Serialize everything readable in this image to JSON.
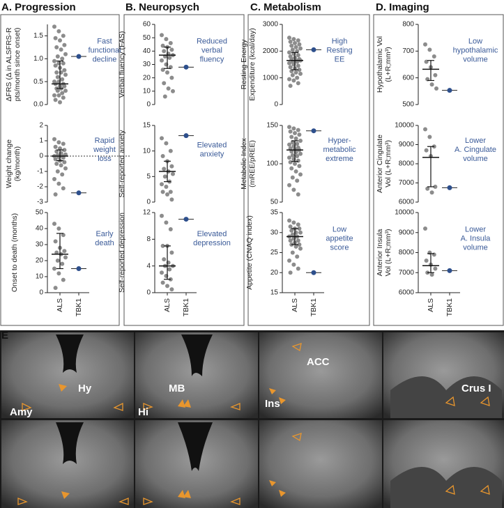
{
  "panels": [
    "A. Progression",
    "B. Neuropsych",
    "C. Metabolism",
    "D. Imaging"
  ],
  "figure_e": {
    "label": "E",
    "regions": [
      "Hy",
      "Amy",
      "MB",
      "Hi",
      "Ins",
      "ACC",
      "Crus I"
    ]
  },
  "chart_data": [
    {
      "type": "strip",
      "ylabel": [
        "ΔFRS (Δ in ALSFRS-R",
        "pts/month since onset)"
      ],
      "ylim": [
        0,
        1.75
      ],
      "yticks": [
        {
          "value": 0,
          "label": "0.0"
        },
        {
          "value": 0.5,
          "label": "0.5"
        },
        {
          "value": 1,
          "label": "1.0"
        },
        {
          "value": 1.5,
          "label": "1.5"
        }
      ],
      "values": [
        [
          1.7,
          1.6,
          1.5,
          1.45,
          1.4,
          1.3,
          1.25,
          1.2,
          1.1,
          1.05,
          1.0,
          0.95,
          0.9,
          0.9,
          0.85,
          0.8,
          0.75,
          0.7,
          0.7,
          0.65,
          0.6,
          0.55,
          0.5,
          0.5,
          0.45,
          0.45,
          0.4,
          0.4,
          0.35,
          0.35,
          0.3,
          0.3,
          0.25,
          0.2,
          0.2,
          0.15,
          0.1,
          0.05
        ],
        [
          1.05
        ]
      ],
      "summary": {
        "center": 0.45,
        "low": 0.35,
        "high": 0.95
      },
      "annotation": [
        "Fast",
        "functional",
        "decline"
      ],
      "color": "#8c8c8c",
      "highlight_color": "#2d4f8c"
    },
    {
      "type": "strip",
      "ylabel": [
        "Weight change",
        "(kg/month)"
      ],
      "ylim": [
        -3,
        2
      ],
      "yticks": [
        -3,
        -2,
        -1,
        0,
        1,
        2
      ],
      "hline": 0,
      "values": [
        [
          1.1,
          0.9,
          0.8,
          0.6,
          0.5,
          0.4,
          0.3,
          0.2,
          0.1,
          0.05,
          0,
          0,
          -0.05,
          -0.1,
          -0.2,
          -0.3,
          -0.4,
          -0.5,
          -0.6,
          -0.8,
          -1.0,
          -1.2,
          -1.5,
          -1.8,
          -2.1,
          -2.5
        ],
        [
          -2.4
        ]
      ],
      "summary": {
        "center": 0,
        "low": -0.3,
        "high": 0.4
      },
      "annotation": [
        "Rapid",
        "weight",
        "loss"
      ],
      "color": "#8c8c8c",
      "highlight_color": "#2d4f8c"
    },
    {
      "type": "strip",
      "ylabel": [
        "Onset to death (months)"
      ],
      "ylim": [
        0,
        50
      ],
      "yticks": [
        0,
        10,
        20,
        30,
        40,
        50
      ],
      "categories": [
        "ALS",
        "TBK1"
      ],
      "values": [
        [
          43,
          40,
          36,
          32,
          28,
          26,
          25,
          24,
          22,
          20,
          18,
          15,
          12,
          8,
          3
        ],
        [
          15
        ]
      ],
      "summary": {
        "center": 24,
        "low": 15,
        "high": 37
      },
      "annotation": [
        "Early",
        "death"
      ],
      "color": "#8c8c8c",
      "highlight_color": "#2d4f8c"
    },
    {
      "type": "strip",
      "ylabel": [
        "Verbal fluency (FAS)"
      ],
      "ylim": [
        0,
        60
      ],
      "yticks": [
        0,
        10,
        20,
        30,
        40,
        50,
        60
      ],
      "values": [
        [
          52,
          49,
          46,
          44,
          43,
          41,
          40,
          38,
          37,
          36,
          35,
          33,
          30,
          28,
          26,
          24,
          20,
          16,
          12,
          10,
          6
        ],
        [
          28
        ]
      ],
      "summary": {
        "center": 37,
        "low": 27,
        "high": 43
      },
      "annotation": [
        "Reduced",
        "verbal",
        "fluency"
      ],
      "color": "#8c8c8c",
      "highlight_color": "#2d4f8c"
    },
    {
      "type": "strip",
      "ylabel": [
        "Self-reported anxiety"
      ],
      "ylim": [
        0,
        15
      ],
      "yticks": [
        0,
        5,
        10,
        15
      ],
      "values": [
        [
          12.5,
          11.5,
          10,
          9,
          8,
          7,
          6.5,
          6,
          5.5,
          5,
          4,
          3.5,
          3,
          2,
          2,
          1.5,
          0.5
        ],
        [
          13
        ]
      ],
      "summary": {
        "center": 6,
        "low": 4,
        "high": 8
      },
      "annotation": [
        "Elevated",
        "anxiety"
      ],
      "color": "#8c8c8c",
      "highlight_color": "#2d4f8c"
    },
    {
      "type": "strip",
      "ylabel": [
        "Self-reported depression"
      ],
      "ylim": [
        0,
        12
      ],
      "yticks": [
        0,
        4,
        8,
        12
      ],
      "categories": [
        "ALS",
        "TBK1"
      ],
      "values": [
        [
          11.5,
          10.5,
          9.5,
          7,
          7,
          6,
          5,
          4.5,
          4,
          4,
          3.5,
          3,
          2.5,
          2,
          1.5,
          1,
          0.5
        ],
        [
          11
        ]
      ],
      "summary": {
        "center": 4,
        "low": 2,
        "high": 7
      },
      "annotation": [
        "Elevated",
        "depression"
      ],
      "color": "#8c8c8c",
      "highlight_color": "#2d4f8c"
    },
    {
      "type": "strip",
      "ylabel": [
        "Resting Energy",
        "Expenditure (kcal/day)"
      ],
      "ylim": [
        0,
        3000
      ],
      "yticks": [
        0,
        1000,
        2000,
        3000
      ],
      "values": [
        [
          2500,
          2450,
          2400,
          2350,
          2300,
          2250,
          2200,
          2150,
          2100,
          2050,
          2000,
          1950,
          1900,
          1850,
          1800,
          1750,
          1700,
          1700,
          1650,
          1650,
          1600,
          1600,
          1550,
          1500,
          1450,
          1400,
          1350,
          1300,
          1250,
          1200,
          1150,
          1100,
          1000,
          950,
          900,
          800,
          700
        ],
        [
          2050
        ]
      ],
      "summary": {
        "center": 1650,
        "low": 1300,
        "high": 1950
      },
      "annotation": [
        "High",
        "Resting",
        "EE"
      ],
      "color": "#8c8c8c",
      "highlight_color": "#2d4f8c"
    },
    {
      "type": "strip",
      "ylabel": [
        "Metabolic Index",
        "(mREE/pREE)"
      ],
      "ylim": [
        50,
        150
      ],
      "yticks": [
        50,
        100,
        150
      ],
      "values": [
        [
          148,
          146,
          144,
          142,
          140,
          138,
          135,
          133,
          130,
          128,
          126,
          125,
          123,
          121,
          120,
          119,
          118,
          116,
          115,
          113,
          111,
          110,
          108,
          106,
          104,
          102,
          100,
          97,
          94,
          90,
          86,
          82,
          78,
          72,
          66,
          60
        ],
        [
          143
        ]
      ],
      "summary": {
        "center": 118,
        "low": 103,
        "high": 130
      },
      "annotation": [
        "Hyper-",
        "metabolic",
        "extreme"
      ],
      "color": "#8c8c8c",
      "highlight_color": "#2d4f8c"
    },
    {
      "type": "strip",
      "ylabel": [
        "Appetite (CNAQ index)"
      ],
      "ylim": [
        15,
        35
      ],
      "yticks": [
        15,
        20,
        25,
        30,
        35
      ],
      "categories": [
        "ALS",
        "TBK1"
      ],
      "values": [
        [
          33,
          32.5,
          32,
          31.5,
          31,
          31,
          30.5,
          30,
          30,
          29.5,
          29,
          29,
          28.5,
          28,
          28,
          27.5,
          27,
          27,
          26.5,
          26,
          25,
          24,
          23,
          22,
          21,
          20
        ],
        [
          20
        ]
      ],
      "summary": {
        "center": 29,
        "low": 27,
        "high": 31
      },
      "annotation": [
        "Low",
        "appetite",
        "score"
      ],
      "color": "#8c8c8c",
      "highlight_color": "#2d4f8c"
    },
    {
      "type": "strip",
      "ylabel": [
        "Hypothalamic Vol",
        "(L+R;mm³)"
      ],
      "ylim": [
        500,
        800
      ],
      "yticks": [
        500,
        600,
        700,
        800
      ],
      "values": [
        [
          725,
          705,
          680,
          660,
          640,
          610,
          595,
          575,
          560
        ],
        [
          553
        ]
      ],
      "summary": {
        "center": 632,
        "low": 590,
        "high": 665
      },
      "annotation": [
        "Low",
        "hypothalamic",
        "volume"
      ],
      "color": "#8c8c8c",
      "highlight_color": "#2d4f8c"
    },
    {
      "type": "strip",
      "ylabel": [
        "Anterior Cingulate",
        "Vol (L+R;mm³)"
      ],
      "ylim": [
        6000,
        10000
      ],
      "yticks": [
        6000,
        7000,
        8000,
        9000,
        10000
      ],
      "values": [
        [
          9800,
          9400,
          8900,
          8700,
          8400,
          6800,
          6700,
          6500
        ],
        [
          6750
        ]
      ],
      "summary": {
        "center": 8330,
        "low": 6800,
        "high": 8900
      },
      "annotation": [
        "Lower",
        "A. Cingulate",
        "volume"
      ],
      "color": "#8c8c8c",
      "highlight_color": "#2d4f8c"
    },
    {
      "type": "strip",
      "ylabel": [
        "Anterior Insula",
        "Vol (L+R;mm³)"
      ],
      "ylim": [
        6000,
        10000
      ],
      "yticks": [
        6000,
        7000,
        8000,
        9000,
        10000
      ],
      "categories": [
        "ALS",
        "TBK1"
      ],
      "values": [
        [
          9200,
          8000,
          7900,
          7600,
          7400,
          7200,
          7000,
          6900
        ],
        [
          7100
        ]
      ],
      "summary": {
        "center": 7350,
        "low": 7000,
        "high": 7950
      },
      "annotation": [
        "Lower",
        "A. Insula",
        "volume"
      ],
      "color": "#8c8c8c",
      "highlight_color": "#2d4f8c"
    }
  ]
}
